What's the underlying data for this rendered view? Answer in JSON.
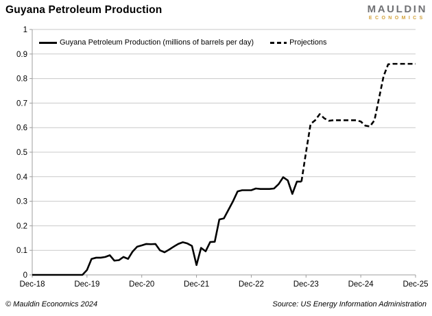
{
  "header": {
    "title": "Guyana Petroleum Production"
  },
  "logo": {
    "line1": "MAULDIN",
    "line2": "ECONOMICS",
    "color_primary": "#707174",
    "color_accent": "#d2a23b"
  },
  "footer": {
    "copyright": "© Mauldin Economics 2024",
    "source": "Source: US Energy Information Administration"
  },
  "colors": {
    "grid": "#c9c9c9",
    "axis": "#9c9c9c",
    "series": "#000000",
    "text": "#000000",
    "background": "#ffffff"
  },
  "chart_data": {
    "type": "line",
    "title": "Guyana Petroleum Production",
    "xlabel": "",
    "ylabel": "",
    "ylim": [
      0,
      1
    ],
    "grid": "horizontal",
    "legend_position": "top-inside",
    "x_tick_labels": [
      "Dec-18",
      "Dec-19",
      "Dec-20",
      "Dec-21",
      "Dec-22",
      "Dec-23",
      "Dec-24",
      "Dec-25"
    ],
    "y_tick_values": [
      0,
      0.1,
      0.2,
      0.3,
      0.4,
      0.5,
      0.6,
      0.7,
      0.8,
      0.9,
      1
    ],
    "y_tick_labels": [
      "0",
      "0.1",
      "0.2",
      "0.3",
      "0.4",
      "0.5",
      "0.6",
      "0.7",
      "0.8",
      "0.9",
      "1"
    ],
    "months_between_x_ticks": 12,
    "series": [
      {
        "name": "Guyana Petroleum Production (millions of barrels per day)",
        "style": "solid",
        "color": "#000000",
        "start_month": 0,
        "monthly_values": [
          0,
          0,
          0,
          0,
          0,
          0,
          0,
          0,
          0,
          0,
          0,
          0,
          0.02,
          0.065,
          0.07,
          0.07,
          0.073,
          0.08,
          0.058,
          0.06,
          0.073,
          0.065,
          0.095,
          0.115,
          0.12,
          0.126,
          0.125,
          0.126,
          0.1,
          0.092,
          0.103,
          0.115,
          0.126,
          0.133,
          0.128,
          0.118,
          0.04,
          0.11,
          0.096,
          0.134,
          0.135,
          0.226,
          0.23,
          0.265,
          0.3,
          0.34,
          0.345,
          0.345,
          0.345,
          0.352,
          0.35,
          0.35,
          0.35,
          0.352,
          0.37,
          0.398,
          0.385,
          0.33,
          0.38,
          0.38
        ]
      },
      {
        "name": "Projections",
        "style": "dashed",
        "color": "#000000",
        "start_month": 59,
        "monthly_values": [
          0.38,
          0.5,
          0.615,
          0.63,
          0.655,
          0.638,
          0.628,
          0.63,
          0.63,
          0.63,
          0.63,
          0.63,
          0.63,
          0.625,
          0.608,
          0.605,
          0.63,
          0.72,
          0.81,
          0.858,
          0.86,
          0.86,
          0.86,
          0.86,
          0.86,
          0.86
        ]
      }
    ]
  }
}
